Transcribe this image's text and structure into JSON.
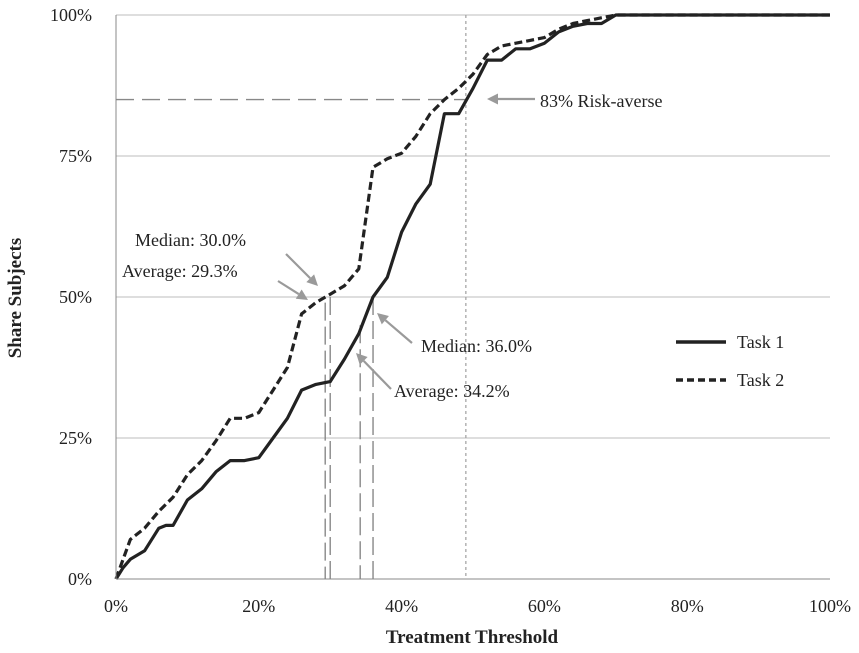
{
  "chart_data": {
    "type": "line",
    "title": "",
    "xlabel": "Treatment  Threshold",
    "ylabel": "Share Subjects",
    "xlim": [
      0,
      1
    ],
    "ylim": [
      0,
      1
    ],
    "x_ticks": [
      "0%",
      "20%",
      "40%",
      "60%",
      "80%",
      "100%"
    ],
    "y_ticks": [
      "0%",
      "25%",
      "50%",
      "75%",
      "100%"
    ],
    "grid": "horizontal",
    "legend_position": "right",
    "series": [
      {
        "name": "Task 1",
        "style": "solid",
        "color": "#222222",
        "points": [
          [
            0,
            0
          ],
          [
            0.01,
            0.02
          ],
          [
            0.02,
            0.035
          ],
          [
            0.04,
            0.05
          ],
          [
            0.06,
            0.09
          ],
          [
            0.07,
            0.095
          ],
          [
            0.08,
            0.095
          ],
          [
            0.1,
            0.14
          ],
          [
            0.12,
            0.16
          ],
          [
            0.14,
            0.19
          ],
          [
            0.16,
            0.21
          ],
          [
            0.18,
            0.21
          ],
          [
            0.2,
            0.215
          ],
          [
            0.22,
            0.25
          ],
          [
            0.24,
            0.285
          ],
          [
            0.26,
            0.335
          ],
          [
            0.28,
            0.345
          ],
          [
            0.3,
            0.35
          ],
          [
            0.32,
            0.39
          ],
          [
            0.34,
            0.435
          ],
          [
            0.36,
            0.5
          ],
          [
            0.38,
            0.535
          ],
          [
            0.4,
            0.615
          ],
          [
            0.42,
            0.665
          ],
          [
            0.44,
            0.7
          ],
          [
            0.46,
            0.825
          ],
          [
            0.48,
            0.825
          ],
          [
            0.5,
            0.87
          ],
          [
            0.52,
            0.92
          ],
          [
            0.54,
            0.92
          ],
          [
            0.56,
            0.94
          ],
          [
            0.58,
            0.94
          ],
          [
            0.6,
            0.95
          ],
          [
            0.62,
            0.97
          ],
          [
            0.64,
            0.98
          ],
          [
            0.66,
            0.985
          ],
          [
            0.68,
            0.985
          ],
          [
            0.7,
            1.0
          ],
          [
            0.85,
            1.0
          ],
          [
            1.0,
            1.0
          ]
        ]
      },
      {
        "name": "Task 2",
        "style": "dashed",
        "color": "#222222",
        "points": [
          [
            0,
            0
          ],
          [
            0.01,
            0.035
          ],
          [
            0.02,
            0.07
          ],
          [
            0.04,
            0.09
          ],
          [
            0.06,
            0.12
          ],
          [
            0.08,
            0.145
          ],
          [
            0.1,
            0.185
          ],
          [
            0.12,
            0.21
          ],
          [
            0.14,
            0.245
          ],
          [
            0.16,
            0.285
          ],
          [
            0.18,
            0.285
          ],
          [
            0.2,
            0.295
          ],
          [
            0.22,
            0.335
          ],
          [
            0.24,
            0.375
          ],
          [
            0.26,
            0.47
          ],
          [
            0.28,
            0.49
          ],
          [
            0.3,
            0.505
          ],
          [
            0.32,
            0.52
          ],
          [
            0.34,
            0.55
          ],
          [
            0.36,
            0.73
          ],
          [
            0.38,
            0.745
          ],
          [
            0.4,
            0.755
          ],
          [
            0.42,
            0.785
          ],
          [
            0.44,
            0.825
          ],
          [
            0.46,
            0.85
          ],
          [
            0.48,
            0.87
          ],
          [
            0.5,
            0.895
          ],
          [
            0.52,
            0.93
          ],
          [
            0.54,
            0.945
          ],
          [
            0.56,
            0.95
          ],
          [
            0.58,
            0.955
          ],
          [
            0.6,
            0.96
          ],
          [
            0.62,
            0.975
          ],
          [
            0.64,
            0.985
          ],
          [
            0.66,
            0.99
          ],
          [
            0.7,
            1.0
          ],
          [
            1.0,
            1.0
          ]
        ]
      }
    ],
    "reference_lines": [
      {
        "label": "Median: 30.0%",
        "series": "Task 2",
        "x": 0.3,
        "y": 0.5
      },
      {
        "label": "Average: 29.3%",
        "series": "Task 2",
        "x": 0.293,
        "y": 0.49
      },
      {
        "label": "Median: 36.0%",
        "series": "Task 1",
        "x": 0.36,
        "y": 0.5
      },
      {
        "label": "Average: 34.2%",
        "series": "Task 1",
        "x": 0.342,
        "y": 0.45
      }
    ],
    "risk_averse": {
      "label": "83% Risk-averse",
      "x": 0.49,
      "y": 0.85
    }
  }
}
